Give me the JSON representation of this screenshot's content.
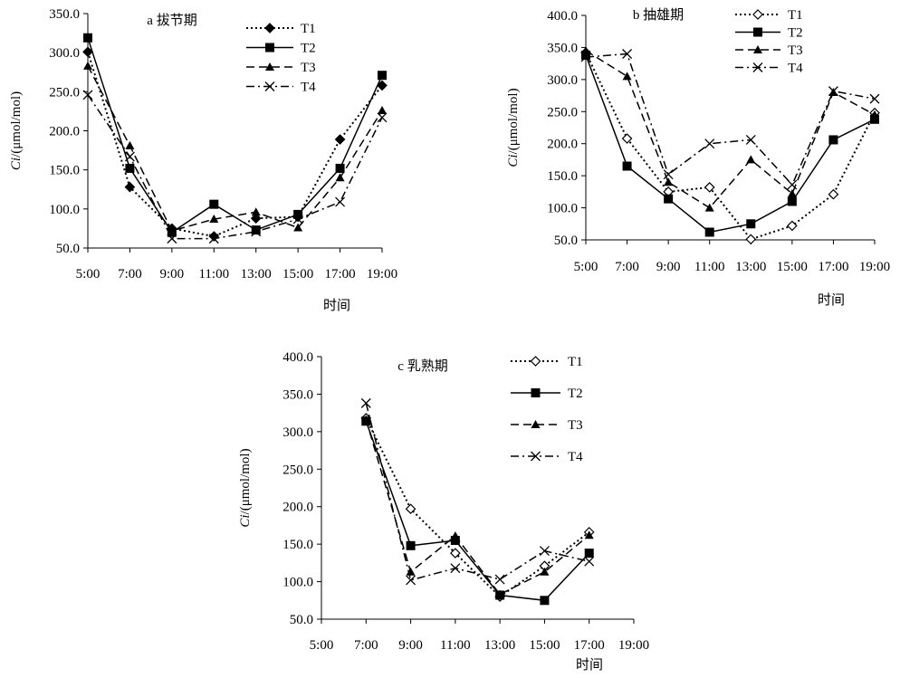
{
  "colors": {
    "axis": "#000000",
    "series": "#000000",
    "background": "#ffffff"
  },
  "chart_data": [
    {
      "type": "line",
      "title": "a 拔节期",
      "xlabel": "时间",
      "ylabel": "Ci/(μmol/mol)",
      "ylabel_italic": "Ci",
      "ylabel_rest": "/(μmol/mol)",
      "categories": [
        "5:00",
        "7:00",
        "9:00",
        "11:00",
        "13:00",
        "15:00",
        "17:00",
        "19:00"
      ],
      "y_ticks": [
        "50.0",
        "100.0",
        "150.0",
        "200.0",
        "250.0",
        "300.0",
        "350.0"
      ],
      "ylim": [
        50,
        350
      ],
      "grid": false,
      "legend_position": "top-right",
      "series": [
        {
          "name": "T1",
          "marker": "diamond-filled",
          "dash": "dotted",
          "values": [
            301,
            128,
            75,
            65,
            88,
            90,
            189,
            258
          ]
        },
        {
          "name": "T2",
          "marker": "square-filled",
          "dash": "solid",
          "values": [
            319,
            152,
            70,
            106,
            73,
            93,
            152,
            271
          ]
        },
        {
          "name": "T3",
          "marker": "triangle-filled",
          "dash": "dashed",
          "values": [
            283,
            181,
            72,
            87,
            96,
            76,
            140,
            226
          ]
        },
        {
          "name": "T4",
          "marker": "cross",
          "dash": "dashdot",
          "values": [
            246,
            167,
            62,
            62,
            71,
            87,
            109,
            217
          ]
        }
      ]
    },
    {
      "type": "line",
      "title": "b 抽雄期",
      "xlabel": "时间",
      "ylabel": "Ci/(μmol/mol)",
      "ylabel_italic": "Ci",
      "ylabel_rest": "/(μmol/mol)",
      "categories": [
        "5:00",
        "7:00",
        "9:00",
        "11:00",
        "13:00",
        "15:00",
        "17:00",
        "19:00"
      ],
      "y_ticks": [
        "50.0",
        "100.0",
        "150.0",
        "200.0",
        "250.0",
        "300.0",
        "350.0",
        "400.0"
      ],
      "ylim": [
        50,
        400
      ],
      "grid": false,
      "legend_position": "top-right",
      "series": [
        {
          "name": "T1",
          "marker": "diamond-open",
          "dash": "dotted",
          "values": [
            342,
            208,
            125,
            132,
            51,
            72,
            121,
            248
          ]
        },
        {
          "name": "T2",
          "marker": "square-filled",
          "dash": "solid",
          "values": [
            338,
            165,
            114,
            62,
            75,
            110,
            206,
            238
          ]
        },
        {
          "name": "T3",
          "marker": "triangle-filled",
          "dash": "dashed",
          "values": [
            345,
            305,
            140,
            100,
            175,
            122,
            280,
            245
          ]
        },
        {
          "name": "T4",
          "marker": "cross",
          "dash": "dashdot",
          "values": [
            335,
            340,
            152,
            200,
            206,
            136,
            282,
            270
          ]
        }
      ]
    },
    {
      "type": "line",
      "title": "c 乳熟期",
      "xlabel": "时间",
      "ylabel": "Ci/(μmol/mol)",
      "ylabel_italic": "Ci",
      "ylabel_rest": "/(μmol/mol)",
      "categories": [
        "5:00",
        "7:00",
        "9:00",
        "11:00",
        "13:00",
        "15:00",
        "17:00",
        "19:00"
      ],
      "y_ticks": [
        "50.0",
        "100.0",
        "150.0",
        "200.0",
        "250.0",
        "300.0",
        "350.0",
        "400.0"
      ],
      "ylim": [
        50,
        400
      ],
      "grid": false,
      "legend_position": "top-right",
      "series": [
        {
          "name": "T1",
          "marker": "diamond-open",
          "dash": "dotted",
          "values": [
            null,
            318,
            197,
            138,
            80,
            121,
            166,
            null
          ]
        },
        {
          "name": "T2",
          "marker": "square-filled",
          "dash": "solid",
          "values": [
            null,
            314,
            148,
            155,
            82,
            75,
            138,
            null
          ]
        },
        {
          "name": "T3",
          "marker": "triangle-filled",
          "dash": "dashed",
          "values": [
            null,
            316,
            113,
            161,
            83,
            113,
            162,
            null
          ]
        },
        {
          "name": "T4",
          "marker": "cross",
          "dash": "dashdot",
          "values": [
            null,
            338,
            102,
            118,
            103,
            141,
            127,
            null
          ]
        }
      ]
    }
  ]
}
